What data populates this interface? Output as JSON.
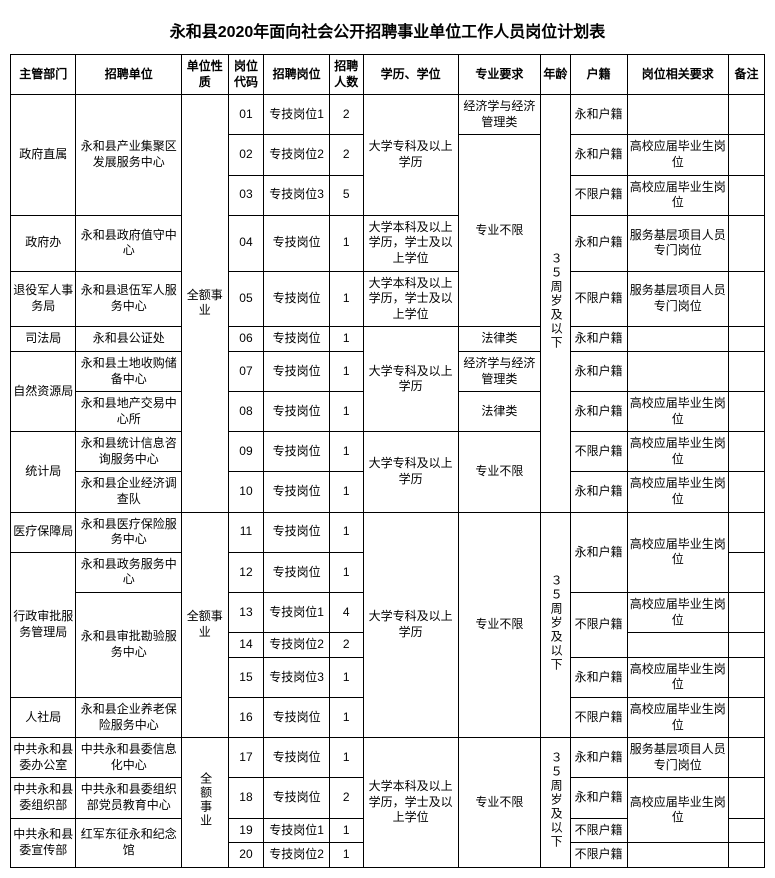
{
  "title": "永和县2020年面向社会公开招聘事业单位工作人员岗位计划表",
  "headers": {
    "dept": "主管部门",
    "unit": "招聘单位",
    "nature": "单位性质",
    "code": "岗位代码",
    "post": "招聘岗位",
    "num": "招聘人数",
    "edu": "学历、学位",
    "major": "专业要求",
    "age": "年龄",
    "huji": "户籍",
    "req": "岗位相关要求",
    "note": "备注"
  },
  "nature_full": "全额事业",
  "nature_full_vertical": "全额事业",
  "edu_zhuanke": "大学专科及以上学历",
  "edu_benke": "大学本科及以上学历，学士及以上学位",
  "major_none": "专业不限",
  "major_econ": "经济学与经济管理类",
  "major_law": "法律类",
  "age_35": "３５周岁及以下",
  "huji_yh": "永和户籍",
  "huji_any": "不限户籍",
  "req_fresh": "高校应届毕业生岗位",
  "req_grass": "服务基层项目人员专门岗位",
  "rows": {
    "r01": {
      "dept": "政府直属",
      "unit": "永和县产业集聚区发展服务中心",
      "code": "01",
      "post": "专技岗位1",
      "num": "2",
      "req": ""
    },
    "r02": {
      "code": "02",
      "post": "专技岗位2",
      "num": "2"
    },
    "r03": {
      "code": "03",
      "post": "专技岗位3",
      "num": "5"
    },
    "r04": {
      "dept": "政府办",
      "unit": "永和县政府值守中心",
      "code": "04",
      "post": "专技岗位",
      "num": "1"
    },
    "r05": {
      "dept": "退役军人事务局",
      "unit": "永和县退伍军人服务中心",
      "code": "05",
      "post": "专技岗位",
      "num": "1"
    },
    "r06": {
      "dept": "司法局",
      "unit": "永和县公证处",
      "code": "06",
      "post": "专技岗位",
      "num": "1"
    },
    "r07": {
      "dept": "自然资源局",
      "unit": "永和县土地收购储备中心",
      "code": "07",
      "post": "专技岗位",
      "num": "1"
    },
    "r08": {
      "unit": "永和县地产交易中心所",
      "code": "08",
      "post": "专技岗位",
      "num": "1"
    },
    "r09": {
      "dept": "统计局",
      "unit": "永和县统计信息咨询服务中心",
      "code": "09",
      "post": "专技岗位",
      "num": "1"
    },
    "r10": {
      "unit": "永和县企业经济调查队",
      "code": "10",
      "post": "专技岗位",
      "num": "1"
    },
    "r11": {
      "dept": "医疗保障局",
      "unit": "永和县医疗保险服务中心",
      "code": "11",
      "post": "专技岗位",
      "num": "1"
    },
    "r12": {
      "dept": "行政审批服务管理局",
      "unit": "永和县政务服务中心",
      "code": "12",
      "post": "专技岗位",
      "num": "1"
    },
    "r13": {
      "unit": "永和县审批勘验服务中心",
      "code": "13",
      "post": "专技岗位1",
      "num": "4"
    },
    "r14": {
      "code": "14",
      "post": "专技岗位2",
      "num": "2"
    },
    "r15": {
      "code": "15",
      "post": "专技岗位3",
      "num": "1"
    },
    "r16": {
      "dept": "人社局",
      "unit": "永和县企业养老保险服务中心",
      "code": "16",
      "post": "专技岗位",
      "num": "1"
    },
    "r17": {
      "dept": "中共永和县委办公室",
      "unit": "中共永和县委信息化中心",
      "code": "17",
      "post": "专技岗位",
      "num": "1"
    },
    "r18": {
      "dept": "中共永和县委组织部",
      "unit": "中共永和县委组织部党员教育中心",
      "code": "18",
      "post": "专技岗位",
      "num": "2"
    },
    "r19": {
      "dept": "中共永和县委宣传部",
      "unit": "红军东征永和纪念馆",
      "code": "19",
      "post": "专技岗位1",
      "num": "1"
    },
    "r20": {
      "code": "20",
      "post": "专技岗位2",
      "num": "1"
    }
  }
}
